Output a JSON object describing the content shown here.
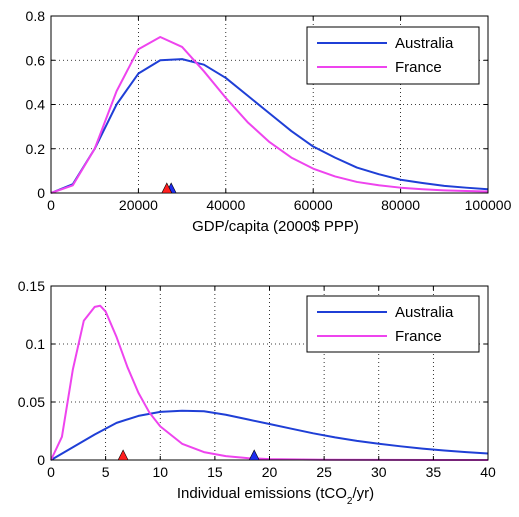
{
  "chart_data": [
    {
      "type": "line",
      "xlabel": "GDP/capita (2000$ PPP)",
      "ylabel": "",
      "xlim": [
        0,
        100000
      ],
      "ylim": [
        0,
        0.8
      ],
      "xticks": [
        0,
        20000,
        40000,
        60000,
        80000,
        100000
      ],
      "xtick_labels": [
        "0",
        "20000",
        "40000",
        "60000",
        "80000",
        "100000"
      ],
      "yticks": [
        0,
        0.2,
        0.4,
        0.6,
        0.8
      ],
      "ytick_labels": [
        "0",
        "0.2",
        "0.4",
        "0.6",
        "0.8"
      ],
      "grid": true,
      "legend_position": "top-right",
      "series": [
        {
          "name": "Australia",
          "color": "#1f3fd6",
          "marker_x": 27500,
          "x": [
            0,
            5000,
            10000,
            15000,
            20000,
            25000,
            30000,
            35000,
            40000,
            45000,
            50000,
            55000,
            60000,
            65000,
            70000,
            75000,
            80000,
            85000,
            90000,
            95000,
            100000
          ],
          "y": [
            0,
            0.04,
            0.2,
            0.4,
            0.54,
            0.6,
            0.605,
            0.58,
            0.52,
            0.44,
            0.36,
            0.28,
            0.21,
            0.16,
            0.115,
            0.085,
            0.06,
            0.045,
            0.032,
            0.024,
            0.017
          ]
        },
        {
          "name": "France",
          "color": "#ee44ee",
          "marker_x": 26500,
          "x": [
            0,
            5000,
            10000,
            15000,
            20000,
            25000,
            30000,
            35000,
            40000,
            45000,
            50000,
            55000,
            60000,
            65000,
            70000,
            75000,
            80000,
            85000,
            90000,
            95000,
            100000
          ],
          "y": [
            0,
            0.035,
            0.2,
            0.46,
            0.65,
            0.705,
            0.66,
            0.55,
            0.43,
            0.32,
            0.23,
            0.16,
            0.11,
            0.075,
            0.05,
            0.035,
            0.024,
            0.017,
            0.012,
            0.009,
            0.007
          ]
        }
      ]
    },
    {
      "type": "line",
      "xlabel": "Individual emissions (tCO",
      "xlabel_sub": "2",
      "xlabel_end": "/yr)",
      "ylabel": "",
      "xlim": [
        0,
        40
      ],
      "ylim": [
        0,
        0.15
      ],
      "xticks": [
        0,
        5,
        10,
        15,
        20,
        25,
        30,
        35,
        40
      ],
      "xtick_labels": [
        "0",
        "5",
        "10",
        "15",
        "20",
        "25",
        "30",
        "35",
        "40"
      ],
      "yticks": [
        0,
        0.05,
        0.1,
        0.15
      ],
      "ytick_labels": [
        "0",
        "0.05",
        "0.1",
        "0.15"
      ],
      "grid": true,
      "legend_position": "top-right",
      "series": [
        {
          "name": "Australia",
          "color": "#1f3fd6",
          "marker_x": 18.6,
          "x": [
            0,
            2,
            4,
            6,
            8,
            10,
            12,
            14,
            16,
            18,
            20,
            22,
            24,
            26,
            28,
            30,
            32,
            34,
            36,
            38,
            40
          ],
          "y": [
            0,
            0.011,
            0.022,
            0.032,
            0.038,
            0.0415,
            0.0425,
            0.042,
            0.039,
            0.035,
            0.031,
            0.027,
            0.023,
            0.0195,
            0.0165,
            0.014,
            0.0118,
            0.0098,
            0.0082,
            0.0068,
            0.0056
          ]
        },
        {
          "name": "France",
          "color": "#ee44ee",
          "marker_x": 6.6,
          "x": [
            0,
            1,
            2,
            3,
            4,
            4.5,
            5,
            6,
            7,
            8,
            9,
            10,
            12,
            14,
            16,
            18,
            20,
            25,
            30,
            35,
            40
          ],
          "y": [
            0,
            0.02,
            0.078,
            0.12,
            0.132,
            0.133,
            0.128,
            0.106,
            0.08,
            0.058,
            0.041,
            0.029,
            0.014,
            0.0068,
            0.0033,
            0.0016,
            0.0008,
            0.0002,
            0.0001,
            0,
            0
          ]
        }
      ]
    }
  ]
}
